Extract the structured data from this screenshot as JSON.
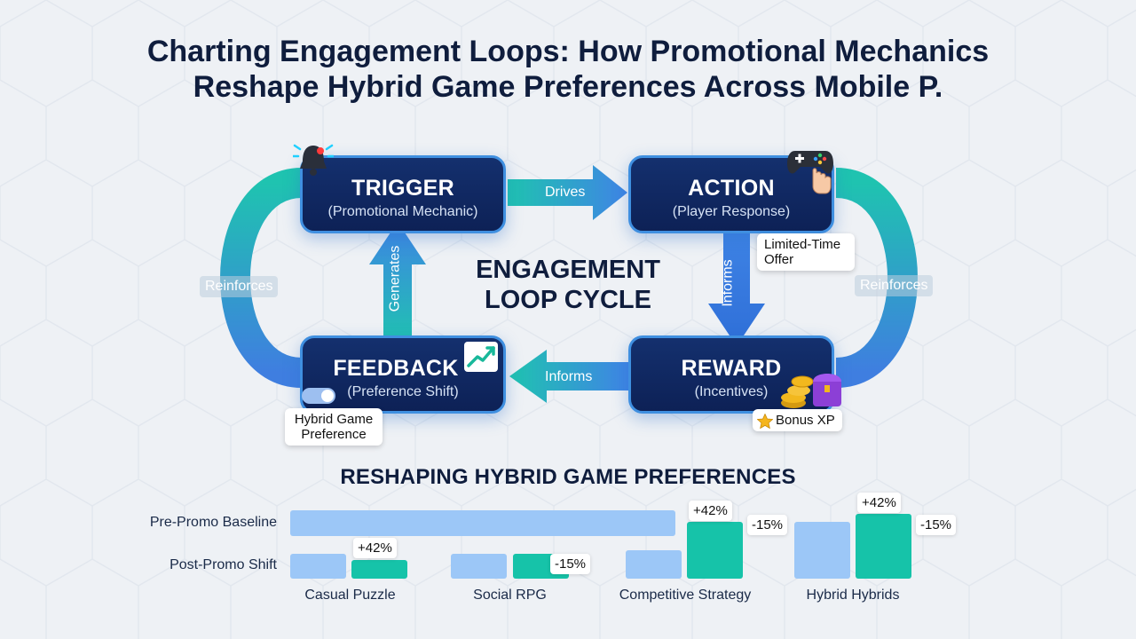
{
  "title": {
    "line1": "Charting Engagement Loops: How Promotional Mechanics",
    "line2": "Reshape Hybrid Game Preferences Across Mobile P."
  },
  "loop": {
    "center_line1": "ENGAGEMENT",
    "center_line2": "LOOP CYCLE",
    "nodes": {
      "trigger": {
        "title": "TRIGGER",
        "subtitle": "(Promotional Mechanic)",
        "icon": "alarm-bell-icon"
      },
      "action": {
        "title": "ACTION",
        "subtitle": "(Player Response)",
        "icon": "gamepad-icon"
      },
      "reward": {
        "title": "REWARD",
        "subtitle": "(Incentives)",
        "icon": "treasure-chest-icon"
      },
      "feedback": {
        "title": "FEEDBACK",
        "subtitle": "(Preference Shift)",
        "icon": "trend-chart-icon"
      }
    },
    "edges": {
      "drives": "Drives",
      "informs_down": "Informs",
      "informs_left": "Informs",
      "generates": "Generates",
      "reinforces_left": "Reinforces",
      "reinforces_right": "Reinforces"
    },
    "callouts": {
      "limited_time_offer": "Limited-Time Offer",
      "bonus_xp": "Bonus XP",
      "hybrid_game_preference": "Hybrid Game Preference"
    },
    "colors": {
      "node_fill": "#0d2156",
      "node_border": "#3f8fe0",
      "teal": "#16c3a9",
      "blue": "#3f8fe0"
    }
  },
  "chart_data": {
    "type": "bar",
    "title": "RESHAPING HYBRID GAME PREFERENCES",
    "row_labels": [
      "Pre-Promo Baseline",
      "Post-Promo Shift"
    ],
    "categories": [
      "Casual Puzzle",
      "Social RPG",
      "Competitive Strategy",
      "Hybrid Hybrids"
    ],
    "series": [
      {
        "name": "Pre-Promo Baseline",
        "color": "#9cc7f7"
      },
      {
        "name": "Post-Promo Shift",
        "color": "#16c3a9"
      }
    ],
    "value_labels": {
      "casual_puzzle": "+42%",
      "social_rpg": "-15%",
      "competitive_strategy": "+42%",
      "competitive_strategy_side": "-15%",
      "hybrid_hybrids": "+42%",
      "hybrid_hybrids_side": "-15%"
    }
  }
}
